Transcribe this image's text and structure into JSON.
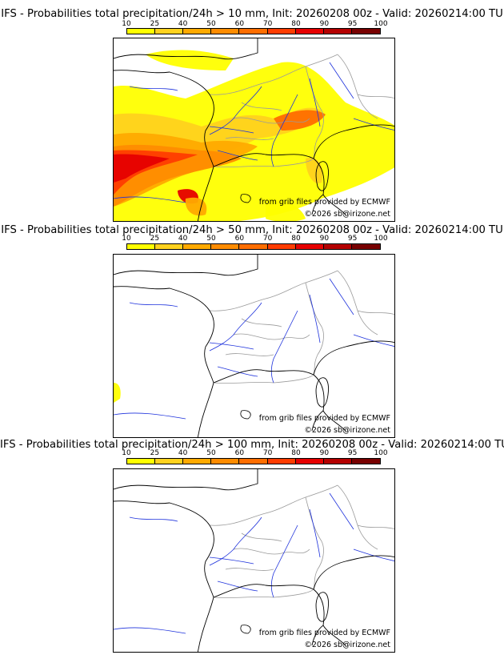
{
  "panels": [
    {
      "title": "IFS - Probabilities total precipitation/24h > 10 mm, Init: 20260208 00z - Valid: 20260214:00 TU",
      "has_precip": "strong"
    },
    {
      "title": "IFS - Probabilities total precipitation/24h > 50 mm, Init: 20260208 00z - Valid: 20260214:00 TU",
      "has_precip": "weak"
    },
    {
      "title": "IFS - Probabilities total precipitation/24h > 100 mm, Init: 20260208 00z - Valid: 20260214:00 TU",
      "has_precip": "none"
    }
  ],
  "legend": {
    "ticks": [
      "10",
      "25",
      "40",
      "50",
      "60",
      "70",
      "80",
      "90",
      "95",
      "100"
    ],
    "colors": [
      "#ffff00",
      "#ffd21e",
      "#ffaa00",
      "#ff8c00",
      "#ff6e00",
      "#ff3c00",
      "#e60000",
      "#b40000",
      "#780000"
    ]
  },
  "credits": {
    "source": "from grib files provided by ECMWF",
    "copyright": "©2026 sb@irizone.net"
  },
  "colors": {
    "coast": "#000000",
    "borders": "#9a9a9a",
    "rivers": "#1e32dc"
  }
}
